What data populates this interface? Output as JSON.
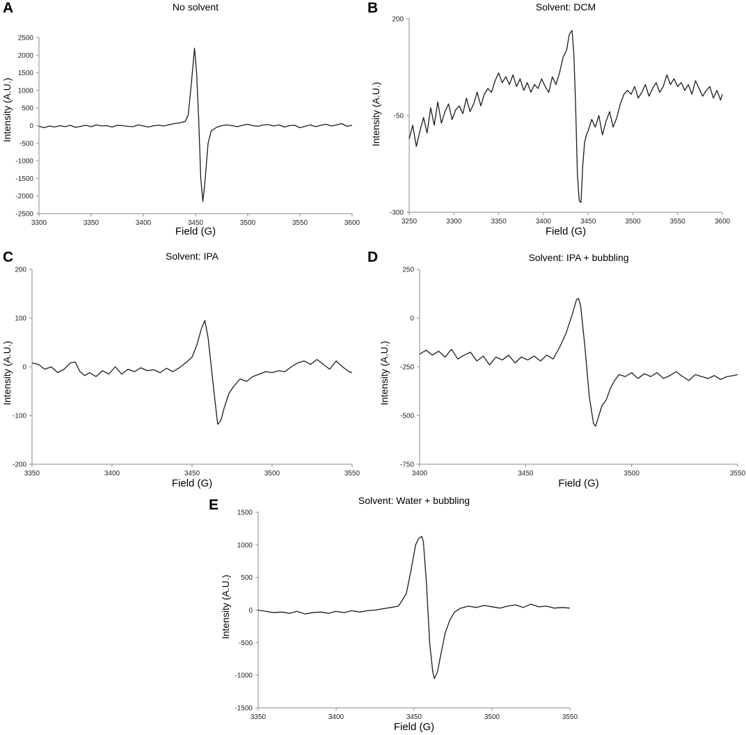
{
  "chart_data": [
    {
      "type": "line",
      "panel": "A",
      "title": "No solvent",
      "xlabel": "Field (G)",
      "ylabel": "Intensity (A.U.)",
      "xlim": [
        3300,
        3600
      ],
      "ylim": [
        -2500,
        2500
      ],
      "xticks": [
        3300,
        3350,
        3400,
        3450,
        3500,
        3550,
        3600
      ],
      "yticks": [
        -2500,
        -2000,
        -1500,
        -1000,
        -500,
        0,
        500,
        1000,
        1500,
        2000,
        2500
      ],
      "grid": false,
      "series": [
        {
          "x": [
            3300,
            3305,
            3310,
            3315,
            3320,
            3325,
            3330,
            3335,
            3340,
            3345,
            3350,
            3355,
            3360,
            3365,
            3370,
            3375,
            3380,
            3385,
            3390,
            3395,
            3400,
            3405,
            3410,
            3415,
            3420,
            3425,
            3430,
            3435,
            3440,
            3443,
            3446,
            3449,
            3451,
            3453,
            3455,
            3457,
            3459,
            3462,
            3465,
            3470,
            3475,
            3480,
            3485,
            3490,
            3495,
            3500,
            3505,
            3510,
            3515,
            3520,
            3525,
            3530,
            3535,
            3540,
            3545,
            3550,
            3555,
            3560,
            3565,
            3570,
            3575,
            3580,
            3585,
            3590,
            3595,
            3600
          ],
          "y": [
            -20,
            -60,
            -10,
            -40,
            0,
            -30,
            10,
            -50,
            -20,
            10,
            -30,
            20,
            -10,
            0,
            -40,
            10,
            0,
            -20,
            -30,
            20,
            -10,
            -40,
            0,
            10,
            -10,
            30,
            60,
            80,
            120,
            300,
            1200,
            2200,
            1500,
            200,
            -1500,
            -2150,
            -1600,
            -500,
            -150,
            -50,
            0,
            20,
            0,
            -30,
            10,
            40,
            0,
            -20,
            20,
            30,
            -10,
            20,
            -40,
            0,
            10,
            -60,
            -20,
            20,
            -30,
            10,
            40,
            -10,
            20,
            60,
            -20,
            10
          ]
        }
      ]
    },
    {
      "type": "line",
      "panel": "B",
      "title": "Solvent: DCM",
      "xlabel": "Field (G)",
      "ylabel": "Intensity (A.U.)",
      "xlim": [
        3250,
        3600
      ],
      "ylim": [
        -300,
        200
      ],
      "xticks": [
        3250,
        3300,
        3350,
        3400,
        3450,
        3500,
        3550,
        3600
      ],
      "yticks": [
        -300,
        -50,
        200
      ],
      "grid": false,
      "series": [
        {
          "x": [
            3250,
            3254,
            3258,
            3262,
            3266,
            3270,
            3274,
            3278,
            3282,
            3286,
            3290,
            3294,
            3298,
            3302,
            3306,
            3310,
            3314,
            3318,
            3322,
            3326,
            3330,
            3334,
            3338,
            3342,
            3346,
            3350,
            3354,
            3358,
            3362,
            3366,
            3370,
            3374,
            3378,
            3382,
            3386,
            3390,
            3394,
            3398,
            3402,
            3406,
            3410,
            3414,
            3418,
            3422,
            3426,
            3429,
            3432,
            3434,
            3436,
            3438,
            3440,
            3442,
            3444,
            3446,
            3448,
            3450,
            3454,
            3458,
            3462,
            3466,
            3470,
            3474,
            3478,
            3482,
            3486,
            3490,
            3494,
            3498,
            3502,
            3506,
            3510,
            3514,
            3518,
            3522,
            3526,
            3530,
            3534,
            3538,
            3542,
            3546,
            3550,
            3554,
            3558,
            3562,
            3566,
            3570,
            3574,
            3578,
            3582,
            3586,
            3590,
            3594,
            3598,
            3600
          ],
          "y": [
            -110,
            -75,
            -130,
            -90,
            -55,
            -95,
            -30,
            -75,
            -15,
            -70,
            -40,
            -20,
            -60,
            -35,
            -25,
            -45,
            -5,
            -40,
            -20,
            10,
            -25,
            5,
            20,
            10,
            40,
            60,
            35,
            50,
            30,
            55,
            25,
            45,
            15,
            35,
            10,
            30,
            20,
            45,
            25,
            10,
            50,
            30,
            60,
            100,
            120,
            160,
            170,
            110,
            -20,
            -200,
            -270,
            -275,
            -180,
            -120,
            -100,
            -90,
            -60,
            -80,
            -50,
            -100,
            -65,
            -40,
            -80,
            -55,
            -20,
            5,
            15,
            5,
            25,
            -5,
            10,
            30,
            0,
            20,
            35,
            10,
            25,
            55,
            30,
            45,
            25,
            35,
            15,
            30,
            5,
            40,
            20,
            0,
            15,
            25,
            -5,
            15,
            -10,
            5
          ]
        }
      ]
    },
    {
      "type": "line",
      "panel": "C",
      "title": "Solvent: IPA",
      "xlabel": "Field (G)",
      "ylabel": "Intensity (A.U.)",
      "xlim": [
        3350,
        3550
      ],
      "ylim": [
        -200,
        200
      ],
      "xticks": [
        3350,
        3400,
        3450,
        3500,
        3550
      ],
      "yticks": [
        -200,
        -100,
        0,
        100,
        200
      ],
      "grid": false,
      "series": [
        {
          "x": [
            3350,
            3354,
            3358,
            3362,
            3366,
            3370,
            3374,
            3377,
            3380,
            3383,
            3386,
            3390,
            3394,
            3398,
            3402,
            3406,
            3410,
            3414,
            3418,
            3422,
            3426,
            3430,
            3434,
            3438,
            3442,
            3446,
            3450,
            3453,
            3456,
            3458,
            3460,
            3462,
            3464,
            3466,
            3468,
            3470,
            3473,
            3476,
            3480,
            3484,
            3488,
            3492,
            3496,
            3500,
            3504,
            3508,
            3512,
            3516,
            3520,
            3524,
            3528,
            3532,
            3536,
            3540,
            3544,
            3548,
            3550
          ],
          "y": [
            8,
            5,
            -5,
            0,
            -12,
            -5,
            8,
            10,
            -10,
            -18,
            -12,
            -20,
            -8,
            -15,
            0,
            -15,
            -5,
            -10,
            -2,
            -8,
            -6,
            -12,
            -3,
            -10,
            -2,
            8,
            20,
            45,
            80,
            95,
            60,
            0,
            -60,
            -118,
            -110,
            -85,
            -55,
            -40,
            -25,
            -30,
            -20,
            -15,
            -10,
            -12,
            -8,
            -10,
            0,
            8,
            12,
            5,
            15,
            5,
            -5,
            12,
            0,
            -10,
            -12
          ]
        }
      ]
    },
    {
      "type": "line",
      "panel": "D",
      "title": "Solvent: IPA + bubbling",
      "xlabel": "Field (G)",
      "ylabel": "Intensity (A.U.)",
      "xlim": [
        3400,
        3550
      ],
      "ylim": [
        -750,
        250
      ],
      "xticks": [
        3400,
        3450,
        3500,
        3550
      ],
      "yticks": [
        -750,
        -500,
        -250,
        0,
        250
      ],
      "grid": false,
      "series": [
        {
          "x": [
            3400,
            3403,
            3406,
            3409,
            3412,
            3415,
            3418,
            3421,
            3424,
            3427,
            3430,
            3433,
            3436,
            3439,
            3442,
            3445,
            3448,
            3451,
            3454,
            3457,
            3460,
            3463,
            3466,
            3469,
            3472,
            3474,
            3475,
            3476,
            3478,
            3480,
            3482,
            3483,
            3484,
            3486,
            3488,
            3490,
            3492,
            3494,
            3497,
            3500,
            3503,
            3506,
            3509,
            3512,
            3515,
            3518,
            3521,
            3524,
            3527,
            3530,
            3533,
            3536,
            3539,
            3542,
            3545,
            3548,
            3550
          ],
          "y": [
            -185,
            -165,
            -190,
            -170,
            -200,
            -160,
            -210,
            -190,
            -175,
            -220,
            -195,
            -240,
            -200,
            -215,
            -190,
            -230,
            -200,
            -215,
            -195,
            -220,
            -190,
            -210,
            -150,
            -80,
            20,
            95,
            100,
            60,
            -150,
            -400,
            -540,
            -555,
            -520,
            -450,
            -420,
            -360,
            -320,
            -290,
            -300,
            -280,
            -310,
            -285,
            -300,
            -280,
            -310,
            -295,
            -275,
            -300,
            -320,
            -290,
            -300,
            -310,
            -295,
            -315,
            -300,
            -295,
            -290
          ]
        }
      ]
    },
    {
      "type": "line",
      "panel": "E",
      "title": "Solvent: Water + bubbling",
      "xlabel": "Field (G)",
      "ylabel": "Intensity (A.U.)",
      "xlim": [
        3350,
        3550
      ],
      "ylim": [
        -1500,
        1500
      ],
      "xticks": [
        3350,
        3400,
        3450,
        3500,
        3550
      ],
      "yticks": [
        -1500,
        -1000,
        -500,
        0,
        500,
        1000,
        1500
      ],
      "grid": false,
      "series": [
        {
          "x": [
            3350,
            3355,
            3360,
            3365,
            3370,
            3375,
            3380,
            3385,
            3390,
            3395,
            3400,
            3405,
            3410,
            3415,
            3420,
            3425,
            3430,
            3435,
            3440,
            3445,
            3448,
            3451,
            3453,
            3455,
            3456,
            3458,
            3460,
            3462,
            3463,
            3465,
            3467,
            3470,
            3473,
            3476,
            3480,
            3485,
            3490,
            3495,
            3500,
            3505,
            3510,
            3515,
            3520,
            3525,
            3530,
            3535,
            3540,
            3545,
            3550
          ],
          "y": [
            0,
            -20,
            -40,
            -30,
            -50,
            -20,
            -60,
            -40,
            -30,
            -50,
            -20,
            -40,
            -10,
            -30,
            -10,
            0,
            20,
            40,
            60,
            250,
            600,
            1000,
            1100,
            1130,
            1050,
            400,
            -500,
            -950,
            -1050,
            -950,
            -700,
            -350,
            -150,
            -30,
            30,
            60,
            40,
            70,
            50,
            30,
            60,
            80,
            40,
            90,
            50,
            60,
            30,
            40,
            30
          ]
        }
      ]
    }
  ]
}
